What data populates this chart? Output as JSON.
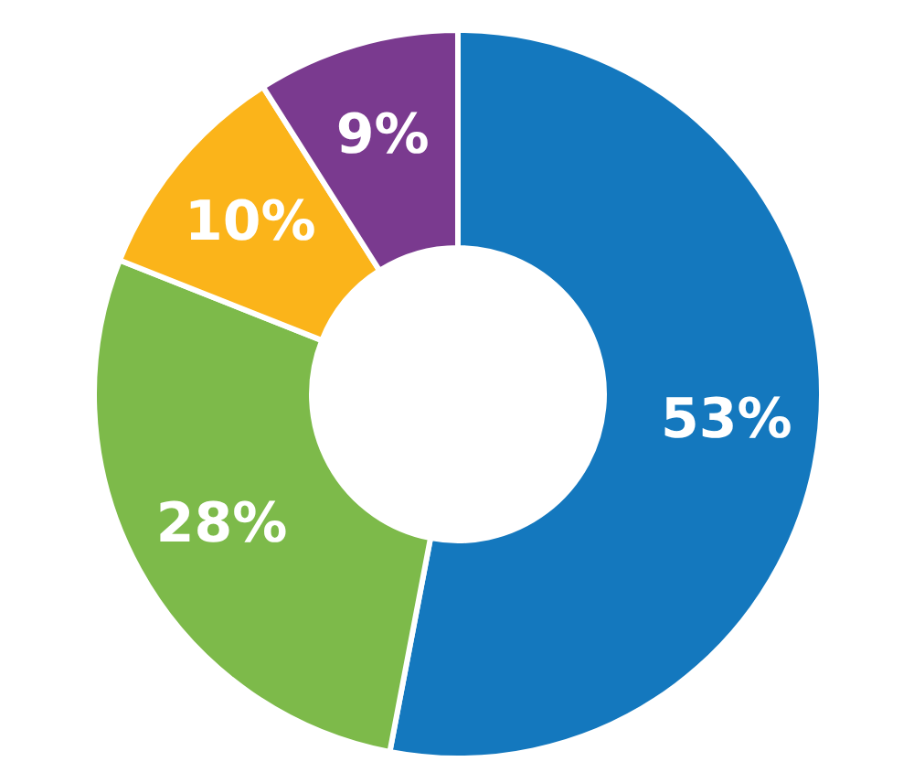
{
  "chart_data": {
    "type": "donut",
    "categories": [
      null,
      null,
      null,
      null
    ],
    "values": [
      53,
      28,
      10,
      9
    ],
    "colors": [
      "#1478be",
      "#7dba4a",
      "#fbb41a",
      "#7a3a8f"
    ],
    "value_labels": [
      "53%",
      "28%",
      "10%",
      "9%"
    ]
  }
}
